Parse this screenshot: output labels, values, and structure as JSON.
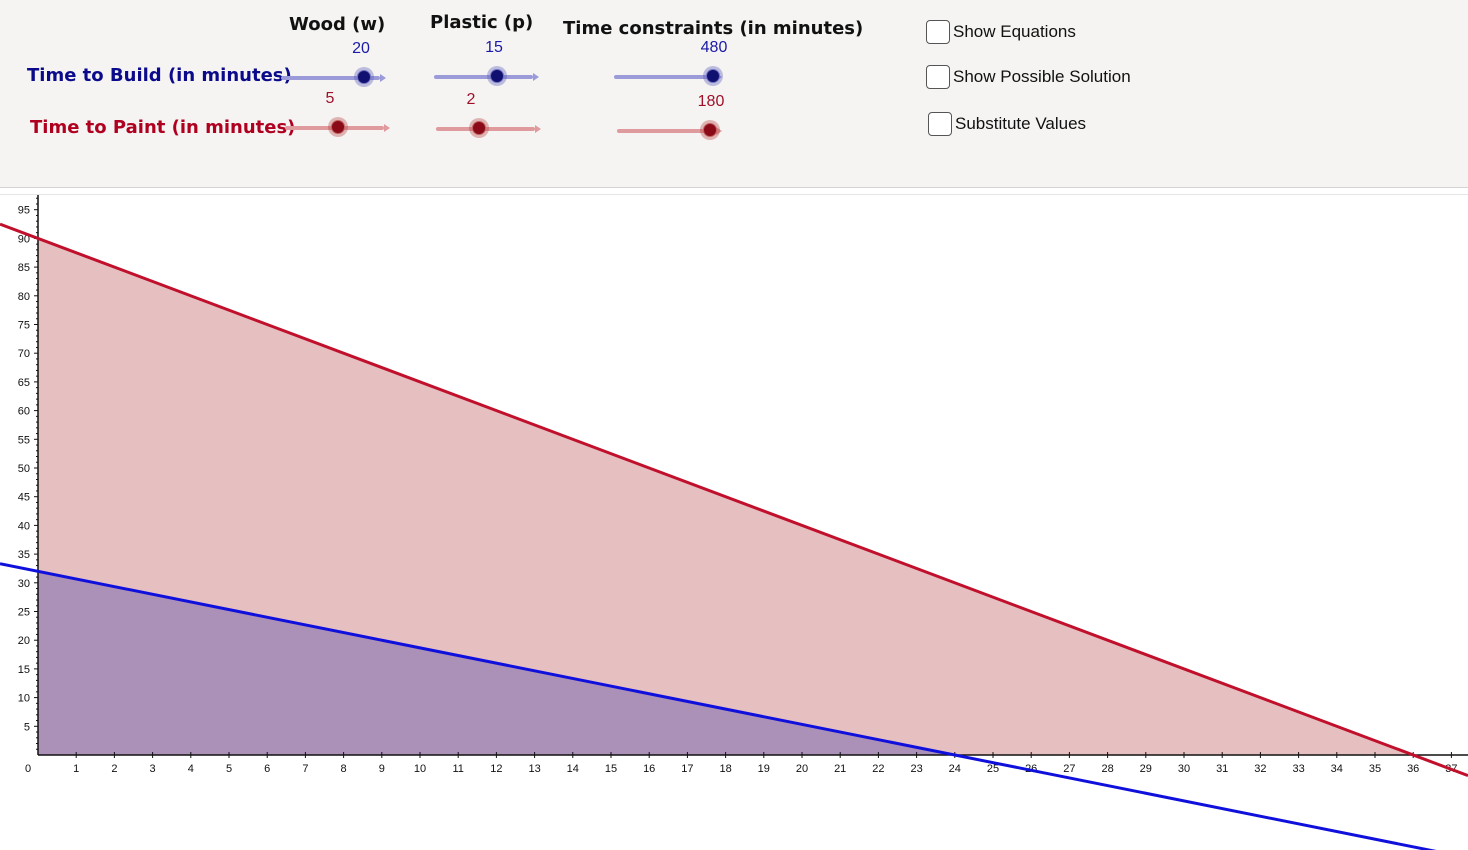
{
  "headers": {
    "wood": "Wood (w)",
    "plastic": "Plastic (p)",
    "time": "Time constraints (in minutes)"
  },
  "rows": {
    "build": {
      "label": "Time to Build (in minutes)",
      "wood": "20",
      "plastic": "15",
      "constraint": "480"
    },
    "paint": {
      "label": "Time to Paint (in minutes)",
      "wood": "5",
      "plastic": "2",
      "constraint": "180"
    }
  },
  "checkboxes": {
    "equations": "Show Equations",
    "solution": "Show Possible Solution",
    "substitute": "Substitute Values"
  },
  "colors": {
    "build": "#1010dd",
    "paint": "#c0102c",
    "build_label": "#0a0a8a",
    "paint_label": "#b00020",
    "paint_fill": "#e6bfc1",
    "overlap_fill": "#ab90b7"
  },
  "chart_data": {
    "type": "area",
    "xlim": [
      0,
      37
    ],
    "ylim": [
      0,
      97
    ],
    "x_ticks": [
      0,
      1,
      2,
      3,
      4,
      5,
      6,
      7,
      8,
      9,
      10,
      11,
      12,
      13,
      14,
      15,
      16,
      17,
      18,
      19,
      20,
      21,
      22,
      23,
      24,
      25,
      26,
      27,
      28,
      29,
      30,
      31,
      32,
      33,
      34,
      35,
      36,
      37
    ],
    "y_ticks": [
      5,
      10,
      15,
      20,
      25,
      30,
      35,
      40,
      45,
      50,
      55,
      60,
      65,
      70,
      75,
      80,
      85,
      90,
      95
    ],
    "series": [
      {
        "a": 20,
        "b": 15,
        "c": 480
      },
      {
        "a": 5,
        "b": 2,
        "c": 180
      }
    ]
  }
}
